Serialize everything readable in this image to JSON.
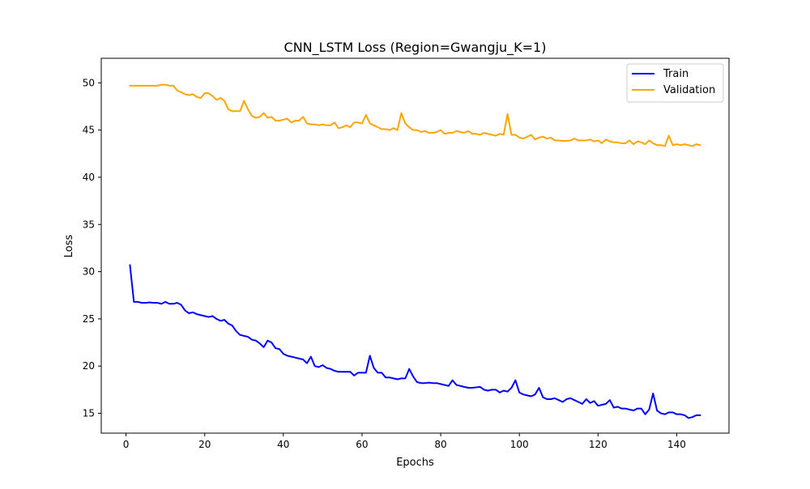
{
  "chart_data": {
    "type": "line",
    "title": "CNN_LSTM Loss (Region=Gwangju_K=1)",
    "xlabel": "Epochs",
    "ylabel": "Loss",
    "xlim": [
      -6.3,
      153.3
    ],
    "ylim": [
      12.9,
      52.6
    ],
    "xticks": [
      0,
      20,
      40,
      60,
      80,
      100,
      120,
      140
    ],
    "yticks": [
      15,
      20,
      25,
      30,
      35,
      40,
      45,
      50
    ],
    "grid": false,
    "legend_position": "top-right",
    "x": [
      1,
      2,
      3,
      4,
      5,
      6,
      7,
      8,
      9,
      10,
      11,
      12,
      13,
      14,
      15,
      16,
      17,
      18,
      19,
      20,
      21,
      22,
      23,
      24,
      25,
      26,
      27,
      28,
      29,
      30,
      31,
      32,
      33,
      34,
      35,
      36,
      37,
      38,
      39,
      40,
      41,
      42,
      43,
      44,
      45,
      46,
      47,
      48,
      49,
      50,
      51,
      52,
      53,
      54,
      55,
      56,
      57,
      58,
      59,
      60,
      61,
      62,
      63,
      64,
      65,
      66,
      67,
      68,
      69,
      70,
      71,
      72,
      73,
      74,
      75,
      76,
      77,
      78,
      79,
      80,
      81,
      82,
      83,
      84,
      85,
      86,
      87,
      88,
      89,
      90,
      91,
      92,
      93,
      94,
      95,
      96,
      97,
      98,
      99,
      100,
      101,
      102,
      103,
      104,
      105,
      106,
      107,
      108,
      109,
      110,
      111,
      112,
      113,
      114,
      115,
      116,
      117,
      118,
      119,
      120,
      121,
      122,
      123,
      124,
      125,
      126,
      127,
      128,
      129,
      130,
      131,
      132,
      133,
      134,
      135,
      136,
      137,
      138,
      139,
      140,
      141,
      142,
      143,
      144,
      145,
      146
    ],
    "series": [
      {
        "name": "Train",
        "color": "#0000ff",
        "values": [
          30.7,
          26.8,
          26.8,
          26.7,
          26.7,
          26.75,
          26.7,
          26.7,
          26.6,
          26.8,
          26.6,
          26.6,
          26.7,
          26.5,
          25.9,
          25.6,
          25.7,
          25.5,
          25.4,
          25.3,
          25.2,
          25.3,
          25.0,
          24.8,
          24.9,
          24.5,
          24.3,
          23.7,
          23.3,
          23.2,
          23.1,
          22.8,
          22.7,
          22.4,
          22.0,
          22.7,
          22.5,
          21.9,
          21.8,
          21.3,
          21.1,
          21.0,
          20.9,
          20.8,
          20.7,
          20.3,
          21.0,
          20.0,
          19.9,
          20.1,
          19.8,
          19.7,
          19.5,
          19.4,
          19.4,
          19.4,
          19.4,
          19.0,
          19.3,
          19.3,
          19.3,
          21.1,
          19.8,
          19.3,
          19.3,
          18.8,
          18.8,
          18.7,
          18.6,
          18.7,
          18.7,
          19.7,
          18.9,
          18.3,
          18.2,
          18.2,
          18.25,
          18.2,
          18.2,
          18.1,
          18.0,
          17.9,
          18.5,
          18.0,
          17.9,
          17.8,
          17.7,
          17.7,
          17.75,
          17.8,
          17.5,
          17.4,
          17.5,
          17.5,
          17.2,
          17.4,
          17.3,
          17.7,
          18.5,
          17.2,
          17.0,
          16.9,
          16.8,
          17.0,
          17.7,
          16.7,
          16.5,
          16.5,
          16.6,
          16.4,
          16.2,
          16.5,
          16.6,
          16.4,
          16.2,
          16.0,
          16.5,
          16.1,
          16.3,
          15.8,
          15.9,
          16.0,
          16.4,
          15.6,
          15.7,
          15.5,
          15.5,
          15.4,
          15.3,
          15.5,
          15.5,
          14.9,
          15.4,
          17.1,
          15.3,
          15.0,
          14.9,
          15.1,
          15.1,
          14.9,
          14.9,
          14.8,
          14.5,
          14.6,
          14.8,
          14.8
        ]
      },
      {
        "name": "Validation",
        "color": "#ffa500",
        "values": [
          49.7,
          49.7,
          49.7,
          49.7,
          49.7,
          49.7,
          49.7,
          49.7,
          49.8,
          49.8,
          49.7,
          49.7,
          49.2,
          49.0,
          48.8,
          48.7,
          48.8,
          48.5,
          48.4,
          48.9,
          48.9,
          48.6,
          48.2,
          48.4,
          48.1,
          47.2,
          47.0,
          47.0,
          47.0,
          48.1,
          47.2,
          46.5,
          46.3,
          46.4,
          46.8,
          46.3,
          46.4,
          46.0,
          46.0,
          46.1,
          46.2,
          45.8,
          46.0,
          46.0,
          46.4,
          45.7,
          45.6,
          45.6,
          45.5,
          45.6,
          45.5,
          45.5,
          45.8,
          45.2,
          45.3,
          45.5,
          45.3,
          45.8,
          45.8,
          45.7,
          46.6,
          45.7,
          45.5,
          45.3,
          45.1,
          45.1,
          45.0,
          45.2,
          45.0,
          46.8,
          45.7,
          45.3,
          45.0,
          45.0,
          44.8,
          44.9,
          44.7,
          44.7,
          44.8,
          45.0,
          44.6,
          44.7,
          44.7,
          44.9,
          44.8,
          44.7,
          44.9,
          44.6,
          44.6,
          44.5,
          44.7,
          44.6,
          44.5,
          44.4,
          44.6,
          44.5,
          46.7,
          44.5,
          44.5,
          44.2,
          44.1,
          44.3,
          44.5,
          44.0,
          44.2,
          44.3,
          44.1,
          44.2,
          43.9,
          43.9,
          43.85,
          43.85,
          43.9,
          44.1,
          43.9,
          43.9,
          43.9,
          44.0,
          43.8,
          43.9,
          43.6,
          44.0,
          43.8,
          43.7,
          43.7,
          43.6,
          43.6,
          43.9,
          43.5,
          43.8,
          43.7,
          43.5,
          43.9,
          43.6,
          43.4,
          43.4,
          43.3,
          44.4,
          43.4,
          43.5,
          43.4,
          43.5,
          43.4,
          43.3,
          43.5,
          43.4
        ]
      }
    ]
  }
}
